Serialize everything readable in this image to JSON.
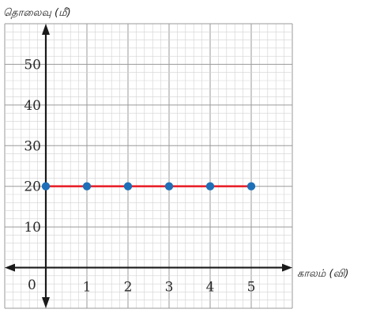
{
  "chart_data": {
    "type": "line",
    "title": "",
    "ylabel": "தொலைவு (மீ)",
    "xlabel": "காலம் (வி)",
    "origin_label": "0",
    "x": [
      0,
      1,
      2,
      3,
      4,
      5
    ],
    "series": [
      {
        "values": [
          20,
          20,
          20,
          20,
          20,
          20
        ]
      }
    ],
    "xlim": [
      -1,
      6
    ],
    "ylim": [
      -10,
      60
    ],
    "xticks": [
      1,
      2,
      3,
      4,
      5
    ],
    "yticks": [
      10,
      20,
      30,
      40,
      50
    ],
    "xtick_labels": [
      "1",
      "2",
      "3",
      "4",
      "5"
    ],
    "ytick_labels": [
      "10",
      "20",
      "30",
      "40",
      "50"
    ],
    "grid": true,
    "colors": {
      "line": "#e8242c",
      "marker": "#1d6fb8",
      "axis": "#1a1a1a",
      "grid_major": "#9a9a9a",
      "grid_minor": "#d2d2d2"
    }
  }
}
